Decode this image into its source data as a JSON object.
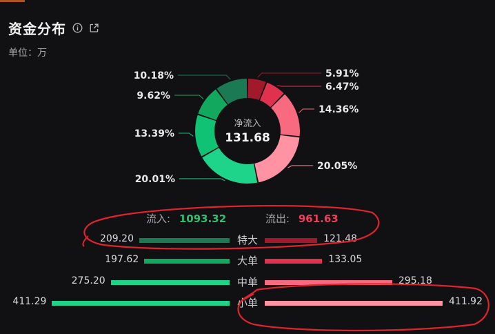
{
  "header": {
    "title": "资金分布",
    "unit": "单位：万"
  },
  "colors": {
    "inflow_dark": "#1b7a54",
    "inflow_mid": "#12a85e",
    "inflow_light": "#1ed38a",
    "outflow_dark": "#a11a2c",
    "outflow_mid": "#e0314f",
    "outflow_light": "#f86a80",
    "outflow_pale": "#ff93a3",
    "annotation": "#e1232f"
  },
  "icons": {
    "info": "info-icon",
    "share": "share-icon"
  },
  "donut": {
    "center_label": "净流入",
    "center_value": "131.68"
  },
  "summary": {
    "inflow_label": "流入:",
    "inflow_value": "1093.32",
    "outflow_label": "流出:",
    "outflow_value": "961.63"
  },
  "chart_data": [
    {
      "type": "pie",
      "title": "",
      "slices": [
        {
          "label": "特大 流出",
          "value": 5.91,
          "text": "5.91%",
          "color": "#a11a2c"
        },
        {
          "label": "大单 流出",
          "value": 6.47,
          "text": "6.47%",
          "color": "#e0314f"
        },
        {
          "label": "中单 流出",
          "value": 14.36,
          "text": "14.36%",
          "color": "#f86a80"
        },
        {
          "label": "小单 流出",
          "value": 20.05,
          "text": "20.05%",
          "color": "#ff93a3"
        },
        {
          "label": "小单 流入",
          "value": 20.01,
          "text": "20.01%",
          "color": "#1ed38a"
        },
        {
          "label": "中单 流入",
          "value": 13.39,
          "text": "13.39%",
          "color": "#10c273"
        },
        {
          "label": "大单 流入",
          "value": 9.62,
          "text": "9.62%",
          "color": "#12a85e"
        },
        {
          "label": "特大 流入",
          "value": 10.18,
          "text": "10.18%",
          "color": "#1b7a54"
        }
      ]
    },
    {
      "type": "bar",
      "title": "",
      "categories": [
        "特大",
        "大单",
        "中单",
        "小单"
      ],
      "series": [
        {
          "name": "流入",
          "values": [
            209.2,
            197.62,
            275.2,
            411.29
          ],
          "labels": [
            "209.20",
            "197.62",
            "275.20",
            "411.29"
          ],
          "colors": [
            "#1b7a54",
            "#12a85e",
            "#1ed38a",
            "#1ed38a"
          ]
        },
        {
          "name": "流出",
          "values": [
            121.48,
            133.05,
            295.18,
            411.92
          ],
          "labels": [
            "121.48",
            "133.05",
            "295.18",
            "411.92"
          ],
          "colors": [
            "#a11a2c",
            "#e0314f",
            "#f86a80",
            "#ff93a3"
          ]
        }
      ]
    }
  ]
}
